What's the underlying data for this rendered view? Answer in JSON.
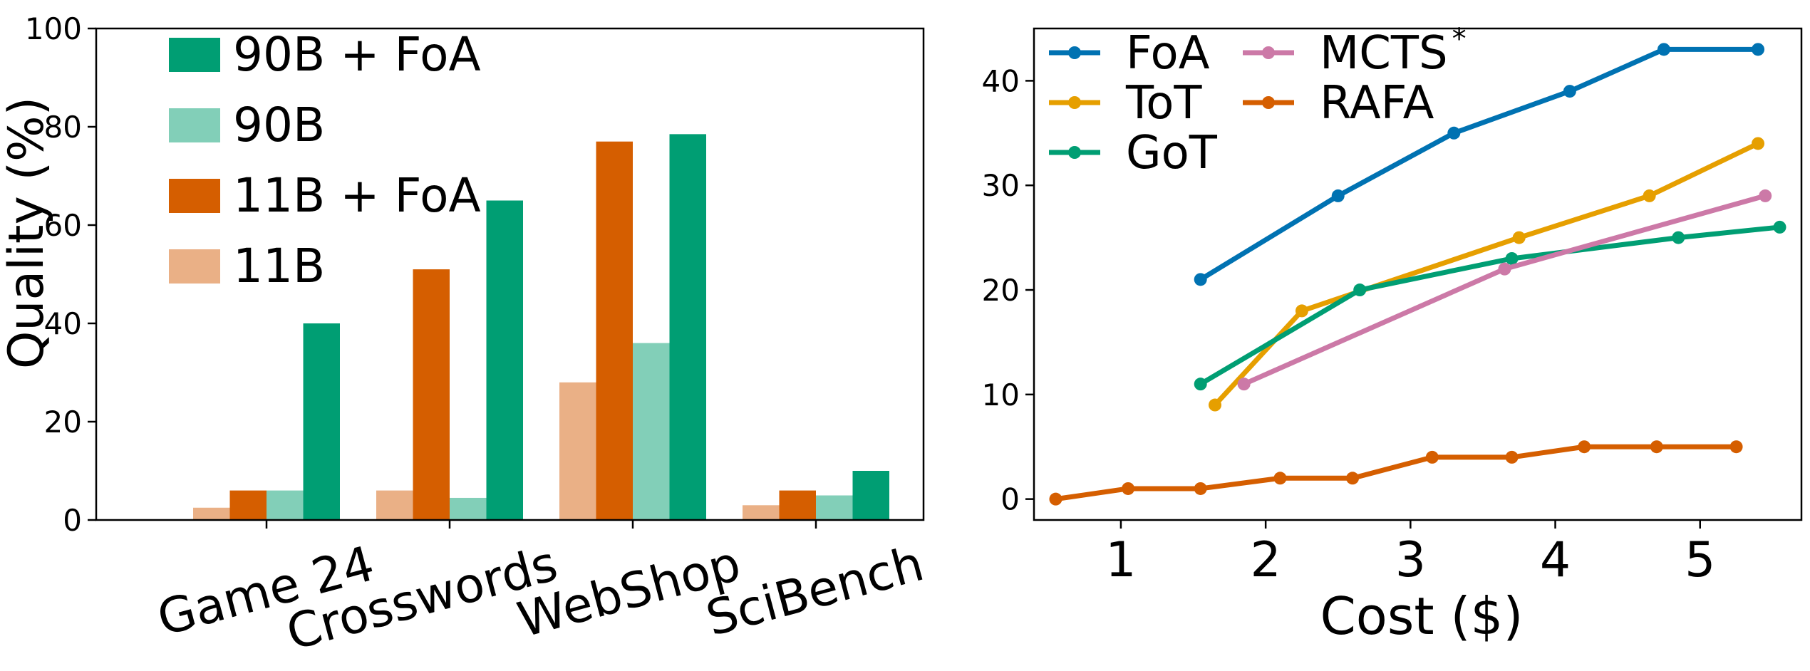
{
  "chart_data": [
    {
      "type": "bar",
      "categories": [
        "Game 24",
        "Crosswords",
        "WebShop",
        "SciBench"
      ],
      "series": [
        {
          "name": "11B",
          "color": "#EAB086",
          "values": [
            2.5,
            6,
            28,
            3
          ]
        },
        {
          "name": "11B + FoA",
          "color": "#D55E00",
          "values": [
            6,
            51,
            77,
            6
          ]
        },
        {
          "name": "90B",
          "color": "#82CFB8",
          "values": [
            6,
            4.5,
            36,
            5
          ]
        },
        {
          "name": "90B + FoA",
          "color": "#009E73",
          "values": [
            40,
            65,
            78.5,
            10
          ]
        }
      ],
      "legend_order": [
        3,
        2,
        1,
        0
      ],
      "legend_position": "top-left",
      "ylabel": "Quality (%)",
      "xlabel": "",
      "ylim": [
        0,
        100
      ],
      "yticks": [
        0,
        20,
        40,
        60,
        80,
        100
      ],
      "grid": false
    },
    {
      "type": "line",
      "series": [
        {
          "name": "FoA",
          "color": "#0072B2",
          "x": [
            1.55,
            2.5,
            3.3,
            4.1,
            4.75,
            5.4
          ],
          "y": [
            21,
            29,
            35,
            39,
            43,
            43
          ]
        },
        {
          "name": "ToT",
          "color": "#E69F00",
          "x": [
            1.65,
            2.25,
            3.75,
            4.65,
            5.4
          ],
          "y": [
            9,
            18,
            25,
            29,
            34
          ]
        },
        {
          "name": "GoT",
          "color": "#009E73",
          "x": [
            1.55,
            2.65,
            3.7,
            4.85,
            5.55
          ],
          "y": [
            11,
            20,
            23,
            25,
            26
          ]
        },
        {
          "name": "MCTS",
          "superscript": "*",
          "color": "#CC79A7",
          "x": [
            1.85,
            3.65,
            5.45
          ],
          "y": [
            11,
            22,
            29
          ]
        },
        {
          "name": "RAFA",
          "color": "#D55E00",
          "x": [
            0.55,
            1.05,
            1.55,
            2.1,
            2.6,
            3.15,
            3.7,
            4.2,
            4.7,
            5.25
          ],
          "y": [
            0,
            1,
            1,
            2,
            2,
            4,
            4,
            5,
            5,
            5
          ]
        }
      ],
      "legend_position": "top-left",
      "xlabel": "Cost ($)",
      "ylabel": "",
      "xlim": [
        0.4,
        5.7
      ],
      "ylim": [
        -2,
        45
      ],
      "xticks": [
        1,
        2,
        3,
        4,
        5
      ],
      "yticks": [
        0,
        10,
        20,
        30,
        40
      ],
      "grid": false
    }
  ]
}
